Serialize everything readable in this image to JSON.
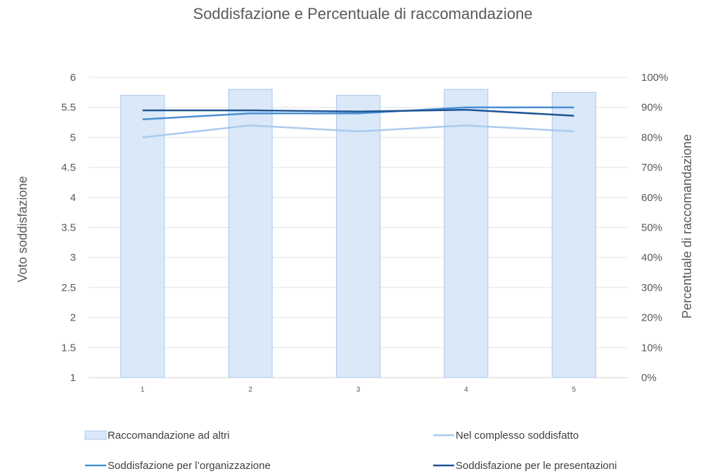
{
  "chart_data": {
    "type": "bar",
    "title": "Soddisfazione e Percentuale di raccomandazione",
    "categories": [
      "1",
      "2",
      "3",
      "4",
      "5"
    ],
    "y_left": {
      "label": "Voto soddisfazione",
      "min": 1,
      "max": 6,
      "step": 0.5,
      "tick_labels": [
        "1",
        "1.5",
        "2",
        "2.5",
        "3",
        "3.5",
        "4",
        "4.5",
        "5",
        "5.5",
        "6"
      ]
    },
    "y_right": {
      "label": "Percentuale di raccomandazione",
      "min": 0,
      "max": 100,
      "step": 10,
      "tick_labels": [
        "0%",
        "10%",
        "20%",
        "30%",
        "40%",
        "50%",
        "60%",
        "70%",
        "80%",
        "90%",
        "100%"
      ]
    },
    "grid": true,
    "legend_position": "bottom",
    "series": [
      {
        "name": "Raccomandazione ad altri",
        "type": "bar",
        "axis": "right",
        "values": [
          94,
          96,
          94,
          96,
          95
        ],
        "color": "#dae8f8",
        "stroke": "#a9c8ea"
      },
      {
        "name": "Nel complesso soddisfatto",
        "type": "line",
        "axis": "left",
        "values": [
          5.0,
          5.2,
          5.1,
          5.2,
          5.1
        ],
        "color": "#a9cbee"
      },
      {
        "name": "Soddisfazione per l’organizzazione",
        "type": "line",
        "axis": "left",
        "values": [
          5.3,
          5.4,
          5.4,
          5.5,
          5.5
        ],
        "color": "#4a8fd4"
      },
      {
        "name": "Soddisfazione per le presentazioni",
        "type": "line",
        "axis": "left",
        "values": [
          5.45,
          5.45,
          5.43,
          5.46,
          5.36
        ],
        "color": "#1f5695"
      }
    ]
  }
}
